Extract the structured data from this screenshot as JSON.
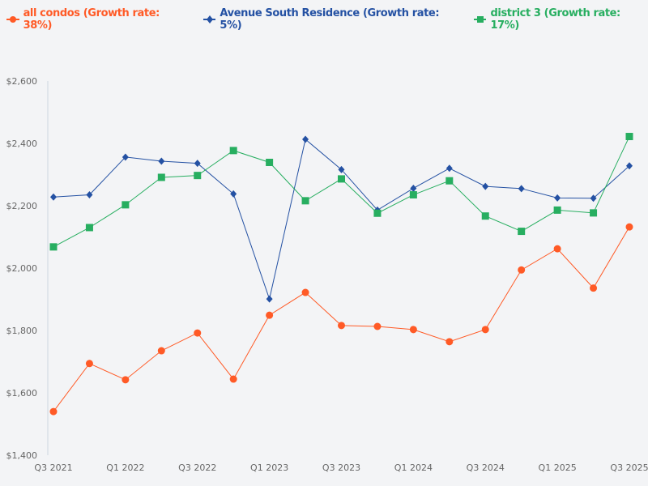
{
  "chart_data": {
    "type": "line",
    "title": "",
    "xlabel": "",
    "ylabel": "",
    "x": [
      "Q3 2021",
      "Q4 2021",
      "Q1 2022",
      "Q2 2022",
      "Q3 2022",
      "Q4 2022",
      "Q1 2023",
      "Q2 2023",
      "Q3 2023",
      "Q4 2023",
      "Q1 2024",
      "Q2 2024",
      "Q3 2024",
      "Q4 2024",
      "Q1 2025",
      "Q2 2025",
      "Q3 2025"
    ],
    "x_tick_labels": [
      "Q3 2021",
      "Q1 2022",
      "Q3 2022",
      "Q1 2023",
      "Q3 2023",
      "Q1 2024",
      "Q3 2024",
      "Q1 2025",
      "Q3 2025"
    ],
    "ylim": [
      1400,
      2600
    ],
    "y_ticks": [
      1400,
      1600,
      1800,
      2000,
      2200,
      2400,
      2600
    ],
    "y_tick_labels": [
      "$1,400",
      "$1,600",
      "$1,800",
      "$2,000",
      "$2,200",
      "$2,400",
      "$2,600"
    ],
    "grid": false,
    "legend_placement": "top-left",
    "series": [
      {
        "name": "all condos (Growth rate: 38%)",
        "color": "#ff5a26",
        "marker": "circle",
        "values": [
          1540,
          1694,
          1642,
          1735,
          1792,
          1644,
          1849,
          1922,
          1816,
          1813,
          1803,
          1764,
          1803,
          1994,
          2062,
          1936,
          2132
        ]
      },
      {
        "name": "Avenue South Residence (Growth rate: 5%)",
        "color": "#2451a3",
        "marker": "diamond",
        "values": [
          2228,
          2235,
          2356,
          2343,
          2336,
          2238,
          1901,
          2413,
          2316,
          2186,
          2256,
          2320,
          2262,
          2255,
          2225,
          2224,
          2328
        ]
      },
      {
        "name": "district 3 (Growth rate: 17%)",
        "color": "#27ae60",
        "marker": "square",
        "values": [
          2068,
          2130,
          2203,
          2291,
          2297,
          2377,
          2339,
          2216,
          2286,
          2176,
          2235,
          2280,
          2167,
          2118,
          2186,
          2177,
          2422
        ]
      }
    ]
  }
}
